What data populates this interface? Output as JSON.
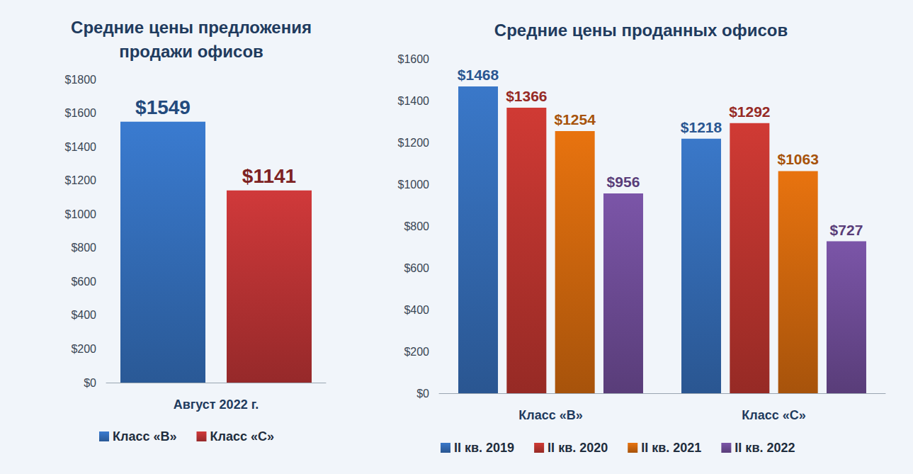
{
  "chart_data": [
    {
      "type": "bar",
      "title": "Средние цены предложения продажи офисов",
      "categories": [
        "Август 2022 г."
      ],
      "series": [
        {
          "name": "Класс «В»",
          "color": "#3a7bd0",
          "values": [
            1549
          ],
          "value_labels": [
            "$1549"
          ]
        },
        {
          "name": "Класс «С»",
          "color": "#d0393a",
          "values": [
            1141
          ],
          "value_labels": [
            "$1141"
          ]
        }
      ],
      "ylim": [
        0,
        1800
      ],
      "yticks": [
        {
          "value": 0,
          "label": "$0"
        },
        {
          "value": 200,
          "label": "$200"
        },
        {
          "value": 400,
          "label": "$400"
        },
        {
          "value": 600,
          "label": "$600"
        },
        {
          "value": 800,
          "label": "$800"
        },
        {
          "value": 1000,
          "label": "$1000"
        },
        {
          "value": 1200,
          "label": "$1200"
        },
        {
          "value": 1400,
          "label": "$1400"
        },
        {
          "value": 1600,
          "label": "$1600"
        },
        {
          "value": 1800,
          "label": "$1800"
        }
      ],
      "grid": false,
      "legend": "bottom",
      "data_labels": true
    },
    {
      "type": "bar",
      "title": "Средние цены проданных офисов",
      "categories": [
        "Класс «В»",
        "Класс «С»"
      ],
      "series": [
        {
          "name": "II кв. 2019",
          "color": "#3a78c9",
          "values": [
            1468,
            1218
          ],
          "value_labels": [
            "$1468",
            "$1218"
          ]
        },
        {
          "name": "II кв. 2020",
          "color": "#d03a34",
          "values": [
            1366,
            1292
          ],
          "value_labels": [
            "$1366",
            "$1292"
          ]
        },
        {
          "name": "II кв. 2021",
          "color": "#e8730f",
          "values": [
            1254,
            1063
          ],
          "value_labels": [
            "$1254",
            "$1063"
          ]
        },
        {
          "name": "II кв. 2022",
          "color": "#7b55a8",
          "values": [
            956,
            727
          ],
          "value_labels": [
            "$956",
            "$727"
          ]
        }
      ],
      "ylim": [
        0,
        1600
      ],
      "yticks": [
        {
          "value": 0,
          "label": "$0"
        },
        {
          "value": 200,
          "label": "$200"
        },
        {
          "value": 400,
          "label": "$400"
        },
        {
          "value": 600,
          "label": "$600"
        },
        {
          "value": 800,
          "label": "$800"
        },
        {
          "value": 1000,
          "label": "$1000"
        },
        {
          "value": 1200,
          "label": "$1200"
        },
        {
          "value": 1400,
          "label": "$1400"
        },
        {
          "value": 1600,
          "label": "$1600"
        }
      ],
      "grid": false,
      "legend": "bottom",
      "data_labels": true
    }
  ]
}
